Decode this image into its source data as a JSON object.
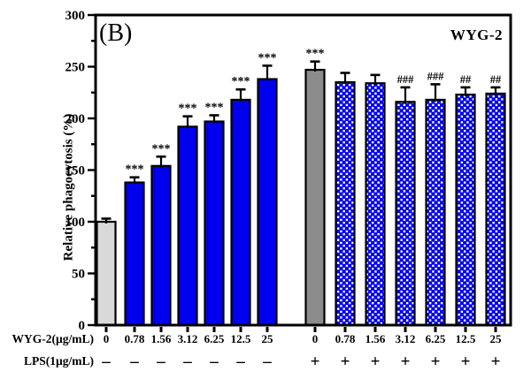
{
  "chart_data": {
    "type": "bar",
    "title": "",
    "panel_label": "(B)",
    "annotation": "WYG-2",
    "ylabel": "Relative phagocytosis (%)",
    "ylim": [
      0,
      300
    ],
    "y_major_step": 50,
    "y_minor_step": 25,
    "y_tick_labels": [
      "0",
      "50",
      "100",
      "150",
      "200",
      "250",
      "300"
    ],
    "grid": false,
    "legend_position": "top-right",
    "x_axis_rows": {
      "row1_label": "WYG-2(µg/mL)",
      "row2_label": "LPS(1µg/mL)"
    },
    "categories": [
      "0",
      "0.78",
      "1.56",
      "3.12",
      "6.25",
      "12.5",
      "25",
      "0",
      "0.78",
      "1.56",
      "3.12",
      "6.25",
      "12.5",
      "25"
    ],
    "lps": [
      "–",
      "–",
      "–",
      "–",
      "–",
      "–",
      "–",
      "+",
      "+",
      "+",
      "+",
      "+",
      "+",
      "+"
    ],
    "values": [
      100,
      138,
      154,
      192,
      197,
      218,
      238,
      247,
      235,
      234,
      216,
      218,
      223,
      224
    ],
    "errors": [
      3,
      5,
      9,
      10,
      6,
      10,
      13,
      8,
      9,
      8,
      14,
      15,
      7,
      6
    ],
    "significance": [
      "",
      "***",
      "***",
      "***",
      "***",
      "***",
      "***",
      "***",
      "",
      "",
      "###",
      "###",
      "##",
      "##"
    ],
    "bar_styles": [
      "light_gray",
      "blue",
      "blue",
      "blue",
      "blue",
      "blue",
      "blue",
      "dark_gray",
      "checker",
      "checker",
      "checker",
      "checker",
      "checker",
      "checker"
    ],
    "colors": {
      "blue": "#0000EE",
      "light_gray": "#D9D9D9",
      "dark_gray": "#8C8C8C",
      "outline": "#000000",
      "checker_dot": "#FFFFFF"
    }
  }
}
